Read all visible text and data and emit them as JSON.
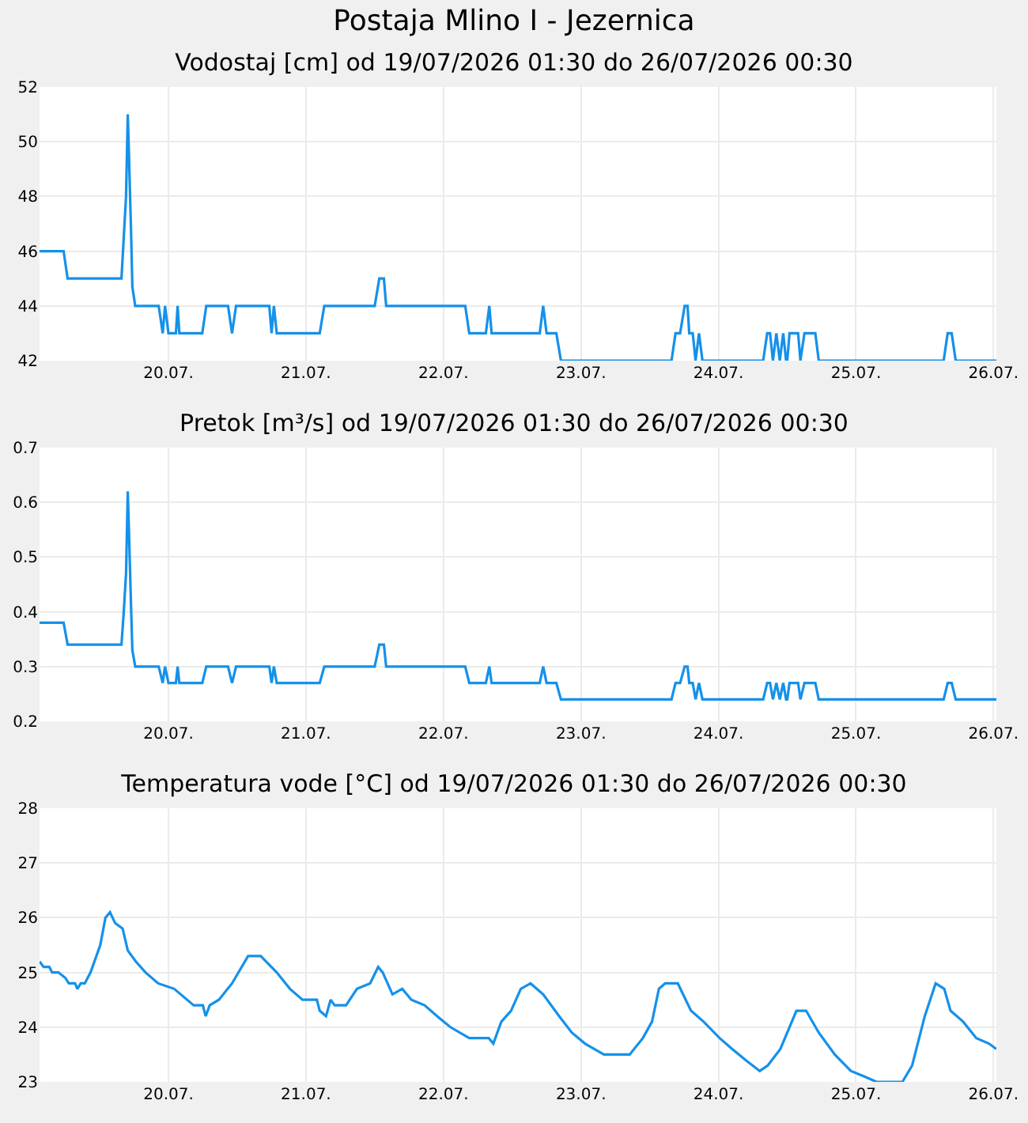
{
  "chart_data": [
    {
      "type": "line",
      "title": "Postaja Mlino I - Jezernica",
      "subtitle": "Vodostaj [cm] od 19/07/2026 01:30 do 26/07/2026 00:30",
      "x": [
        "2026-07-19T01:30",
        "2026-07-19T05:42",
        "2026-07-19T06:24",
        "2026-07-19T15:48",
        "2026-07-19T16:12",
        "2026-07-19T16:36",
        "2026-07-19T16:48",
        "2026-07-19T16:54",
        "2026-07-19T17:06",
        "2026-07-19T17:30",
        "2026-07-19T17:42",
        "2026-07-19T18:12",
        "2026-07-19T22:18",
        "2026-07-19T23:00",
        "2026-07-19T23:24",
        "2026-07-20T00:00",
        "2026-07-20T01:18",
        "2026-07-20T01:36",
        "2026-07-20T01:54",
        "2026-07-20T05:54",
        "2026-07-20T06:36",
        "2026-07-20T10:24",
        "2026-07-20T11:06",
        "2026-07-20T11:48",
        "2026-07-20T17:36",
        "2026-07-20T18:00",
        "2026-07-20T18:24",
        "2026-07-20T18:54",
        "2026-07-21T02:24",
        "2026-07-21T03:12",
        "2026-07-21T12:00",
        "2026-07-21T12:48",
        "2026-07-21T13:36",
        "2026-07-21T14:00",
        "2026-07-22T03:48",
        "2026-07-22T04:30",
        "2026-07-22T07:24",
        "2026-07-22T08:00",
        "2026-07-22T08:24",
        "2026-07-22T16:48",
        "2026-07-22T17:24",
        "2026-07-22T18:00",
        "2026-07-22T19:42",
        "2026-07-22T20:30",
        "2026-07-23T15:48",
        "2026-07-23T16:30",
        "2026-07-23T17:18",
        "2026-07-23T18:06",
        "2026-07-23T18:36",
        "2026-07-23T18:54",
        "2026-07-23T19:30",
        "2026-07-23T20:00",
        "2026-07-23T20:36",
        "2026-07-23T21:12",
        "2026-07-24T07:48",
        "2026-07-24T08:30",
        "2026-07-24T09:00",
        "2026-07-24T09:30",
        "2026-07-24T10:06",
        "2026-07-24T10:42",
        "2026-07-24T11:18",
        "2026-07-24T11:48",
        "2026-07-24T12:00",
        "2026-07-24T12:24",
        "2026-07-24T13:54",
        "2026-07-24T14:18",
        "2026-07-24T15:00",
        "2026-07-24T16:54",
        "2026-07-24T17:30",
        "2026-07-25T15:18",
        "2026-07-25T16:00",
        "2026-07-25T16:42",
        "2026-07-25T17:24",
        "2026-07-26T00:30"
      ],
      "series": [
        {
          "color": "#1591ea",
          "values": [
            46,
            46,
            45,
            45,
            46.5,
            48,
            50,
            51,
            49.6,
            46.5,
            44.7,
            44,
            44,
            43,
            44,
            43,
            43,
            44,
            43,
            43,
            44,
            44,
            43,
            44,
            44,
            43,
            44,
            43,
            43,
            44,
            44,
            45,
            45,
            44,
            44,
            43,
            43,
            44,
            43,
            43,
            44,
            43,
            43,
            42,
            42,
            43,
            43,
            44,
            44,
            43,
            43,
            42,
            43,
            42,
            42,
            43,
            43,
            42,
            43,
            42,
            43,
            42,
            42,
            43,
            43,
            42,
            43,
            43,
            42,
            42,
            43,
            43,
            42,
            42
          ]
        }
      ],
      "xlim": [
        "2026-07-19T01:30",
        "2026-07-26T00:30"
      ],
      "xticks": [
        {
          "value": "2026-07-20",
          "label": "20.07."
        },
        {
          "value": "2026-07-21",
          "label": "21.07."
        },
        {
          "value": "2026-07-22",
          "label": "22.07."
        },
        {
          "value": "2026-07-23",
          "label": "23.07."
        },
        {
          "value": "2026-07-24",
          "label": "24.07."
        },
        {
          "value": "2026-07-25",
          "label": "25.07."
        },
        {
          "value": "2026-07-26",
          "label": "26.07."
        }
      ],
      "ylim": [
        42,
        52
      ],
      "yticks": [
        42,
        44,
        46,
        48,
        50,
        52
      ],
      "grid": true,
      "marker": "none",
      "line_style": "solid"
    },
    {
      "type": "line",
      "title": "Pretok [m³/s] od 19/07/2026 01:30 do 26/07/2026 00:30",
      "x": [
        "2026-07-19T01:30",
        "2026-07-19T05:42",
        "2026-07-19T06:24",
        "2026-07-19T15:48",
        "2026-07-19T16:12",
        "2026-07-19T16:36",
        "2026-07-19T16:48",
        "2026-07-19T16:54",
        "2026-07-19T17:06",
        "2026-07-19T17:30",
        "2026-07-19T17:42",
        "2026-07-19T18:12",
        "2026-07-19T22:18",
        "2026-07-19T23:00",
        "2026-07-19T23:24",
        "2026-07-20T00:00",
        "2026-07-20T01:18",
        "2026-07-20T01:36",
        "2026-07-20T01:54",
        "2026-07-20T05:54",
        "2026-07-20T06:36",
        "2026-07-20T10:24",
        "2026-07-20T11:06",
        "2026-07-20T11:48",
        "2026-07-20T17:36",
        "2026-07-20T18:00",
        "2026-07-20T18:24",
        "2026-07-20T18:54",
        "2026-07-21T02:24",
        "2026-07-21T03:12",
        "2026-07-21T12:00",
        "2026-07-21T12:48",
        "2026-07-21T13:36",
        "2026-07-21T14:00",
        "2026-07-22T03:48",
        "2026-07-22T04:30",
        "2026-07-22T07:24",
        "2026-07-22T08:00",
        "2026-07-22T08:24",
        "2026-07-22T16:48",
        "2026-07-22T17:24",
        "2026-07-22T18:00",
        "2026-07-22T19:42",
        "2026-07-22T20:30",
        "2026-07-23T15:48",
        "2026-07-23T16:30",
        "2026-07-23T17:18",
        "2026-07-23T18:06",
        "2026-07-23T18:36",
        "2026-07-23T18:54",
        "2026-07-23T19:30",
        "2026-07-23T20:00",
        "2026-07-23T20:36",
        "2026-07-23T21:12",
        "2026-07-24T07:48",
        "2026-07-24T08:30",
        "2026-07-24T09:00",
        "2026-07-24T09:30",
        "2026-07-24T10:06",
        "2026-07-24T10:42",
        "2026-07-24T11:18",
        "2026-07-24T11:48",
        "2026-07-24T12:00",
        "2026-07-24T12:24",
        "2026-07-24T13:54",
        "2026-07-24T14:18",
        "2026-07-24T15:00",
        "2026-07-24T16:54",
        "2026-07-24T17:30",
        "2026-07-25T15:18",
        "2026-07-25T16:00",
        "2026-07-25T16:42",
        "2026-07-25T17:24",
        "2026-07-26T00:30"
      ],
      "series": [
        {
          "color": "#1591ea",
          "values": [
            0.38,
            0.38,
            0.34,
            0.34,
            0.4,
            0.47,
            0.57,
            0.62,
            0.55,
            0.4,
            0.33,
            0.3,
            0.3,
            0.27,
            0.3,
            0.27,
            0.27,
            0.3,
            0.27,
            0.27,
            0.3,
            0.3,
            0.27,
            0.3,
            0.3,
            0.27,
            0.3,
            0.27,
            0.27,
            0.3,
            0.3,
            0.34,
            0.34,
            0.3,
            0.3,
            0.27,
            0.27,
            0.3,
            0.27,
            0.27,
            0.3,
            0.27,
            0.27,
            0.24,
            0.24,
            0.27,
            0.27,
            0.3,
            0.3,
            0.27,
            0.27,
            0.24,
            0.27,
            0.24,
            0.24,
            0.27,
            0.27,
            0.24,
            0.27,
            0.24,
            0.27,
            0.24,
            0.24,
            0.27,
            0.27,
            0.24,
            0.27,
            0.27,
            0.24,
            0.24,
            0.27,
            0.27,
            0.24,
            0.24
          ]
        }
      ],
      "xlim": [
        "2026-07-19T01:30",
        "2026-07-26T00:30"
      ],
      "xticks": [
        {
          "value": "2026-07-20",
          "label": "20.07."
        },
        {
          "value": "2026-07-21",
          "label": "21.07."
        },
        {
          "value": "2026-07-22",
          "label": "22.07."
        },
        {
          "value": "2026-07-23",
          "label": "23.07."
        },
        {
          "value": "2026-07-24",
          "label": "24.07."
        },
        {
          "value": "2026-07-25",
          "label": "25.07."
        },
        {
          "value": "2026-07-26",
          "label": "26.07."
        }
      ],
      "ylim": [
        0.2,
        0.7
      ],
      "yticks": [
        0.2,
        0.3,
        0.4,
        0.5,
        0.6,
        0.7
      ],
      "grid": true,
      "marker": "none",
      "line_style": "solid"
    },
    {
      "type": "line",
      "title": "Temperatura vode [°C] od 19/07/2026 01:30 do 26/07/2026 00:30",
      "x": [
        "2026-07-19T01:30",
        "2026-07-19T02:12",
        "2026-07-19T03:12",
        "2026-07-19T03:42",
        "2026-07-19T04:48",
        "2026-07-19T06:00",
        "2026-07-19T06:36",
        "2026-07-19T07:42",
        "2026-07-19T08:06",
        "2026-07-19T08:42",
        "2026-07-19T09:24",
        "2026-07-19T10:24",
        "2026-07-19T12:06",
        "2026-07-19T13:00",
        "2026-07-19T13:48",
        "2026-07-19T14:42",
        "2026-07-19T16:00",
        "2026-07-19T16:54",
        "2026-07-19T18:18",
        "2026-07-19T20:00",
        "2026-07-19T22:12",
        "2026-07-20T01:00",
        "2026-07-20T04:24",
        "2026-07-20T06:00",
        "2026-07-20T06:30",
        "2026-07-20T07:12",
        "2026-07-20T08:48",
        "2026-07-20T11:06",
        "2026-07-20T13:54",
        "2026-07-20T16:06",
        "2026-07-20T18:54",
        "2026-07-20T21:12",
        "2026-07-20T23:24",
        "2026-07-21T01:54",
        "2026-07-21T02:24",
        "2026-07-21T03:30",
        "2026-07-21T04:18",
        "2026-07-21T05:00",
        "2026-07-21T07:00",
        "2026-07-21T08:54",
        "2026-07-21T11:12",
        "2026-07-21T12:36",
        "2026-07-21T13:24",
        "2026-07-21T15:06",
        "2026-07-21T16:48",
        "2026-07-21T18:24",
        "2026-07-21T20:42",
        "2026-07-21T22:54",
        "2026-07-22T01:12",
        "2026-07-22T04:30",
        "2026-07-22T07:54",
        "2026-07-22T08:42",
        "2026-07-22T10:06",
        "2026-07-22T11:48",
        "2026-07-22T13:30",
        "2026-07-22T15:12",
        "2026-07-22T17:24",
        "2026-07-22T20:12",
        "2026-07-22T22:24",
        "2026-07-23T00:42",
        "2026-07-23T04:00",
        "2026-07-23T08:30",
        "2026-07-23T10:48",
        "2026-07-23T12:24",
        "2026-07-23T13:36",
        "2026-07-23T14:42",
        "2026-07-23T16:54",
        "2026-07-23T19:12",
        "2026-07-23T21:24",
        "2026-07-24T00:12",
        "2026-07-24T02:24",
        "2026-07-24T04:42",
        "2026-07-24T07:12",
        "2026-07-24T08:36",
        "2026-07-24T10:48",
        "2026-07-24T13:36",
        "2026-07-24T15:18",
        "2026-07-24T17:30",
        "2026-07-24T20:18",
        "2026-07-24T23:06",
        "2026-07-25T01:24",
        "2026-07-25T03:36",
        "2026-07-25T08:06",
        "2026-07-25T09:48",
        "2026-07-25T12:00",
        "2026-07-25T13:54",
        "2026-07-25T15:24",
        "2026-07-25T16:30",
        "2026-07-25T18:42",
        "2026-07-25T21:00",
        "2026-07-25T23:12",
        "2026-07-26T00:30"
      ],
      "series": [
        {
          "color": "#1591ea",
          "values": [
            25.2,
            25.1,
            25.1,
            25.0,
            25.0,
            24.9,
            24.8,
            24.8,
            24.7,
            24.8,
            24.8,
            25.0,
            25.5,
            26.0,
            26.1,
            25.9,
            25.8,
            25.4,
            25.2,
            25.0,
            24.8,
            24.7,
            24.4,
            24.4,
            24.2,
            24.4,
            24.5,
            24.8,
            25.3,
            25.3,
            25.0,
            24.7,
            24.5,
            24.5,
            24.3,
            24.2,
            24.5,
            24.4,
            24.4,
            24.7,
            24.8,
            25.1,
            25.0,
            24.6,
            24.7,
            24.5,
            24.4,
            24.2,
            24.0,
            23.8,
            23.8,
            23.7,
            24.1,
            24.3,
            24.7,
            24.8,
            24.6,
            24.2,
            23.9,
            23.7,
            23.5,
            23.5,
            23.8,
            24.1,
            24.7,
            24.8,
            24.8,
            24.3,
            24.1,
            23.8,
            23.6,
            23.4,
            23.2,
            23.3,
            23.6,
            24.3,
            24.3,
            23.9,
            23.5,
            23.2,
            23.1,
            23.0,
            23.0,
            23.3,
            24.2,
            24.8,
            24.7,
            24.3,
            24.1,
            23.8,
            23.7,
            23.6
          ]
        }
      ],
      "xlim": [
        "2026-07-19T01:30",
        "2026-07-26T00:30"
      ],
      "xticks": [
        {
          "value": "2026-07-20",
          "label": "20.07."
        },
        {
          "value": "2026-07-21",
          "label": "21.07."
        },
        {
          "value": "2026-07-22",
          "label": "22.07."
        },
        {
          "value": "2026-07-23",
          "label": "23.07."
        },
        {
          "value": "2026-07-24",
          "label": "24.07."
        },
        {
          "value": "2026-07-25",
          "label": "25.07."
        },
        {
          "value": "2026-07-26",
          "label": "26.07."
        }
      ],
      "ylim": [
        23,
        28
      ],
      "yticks": [
        23,
        24,
        25,
        26,
        27,
        28
      ],
      "grid": true,
      "marker": "none",
      "line_style": "solid"
    }
  ]
}
